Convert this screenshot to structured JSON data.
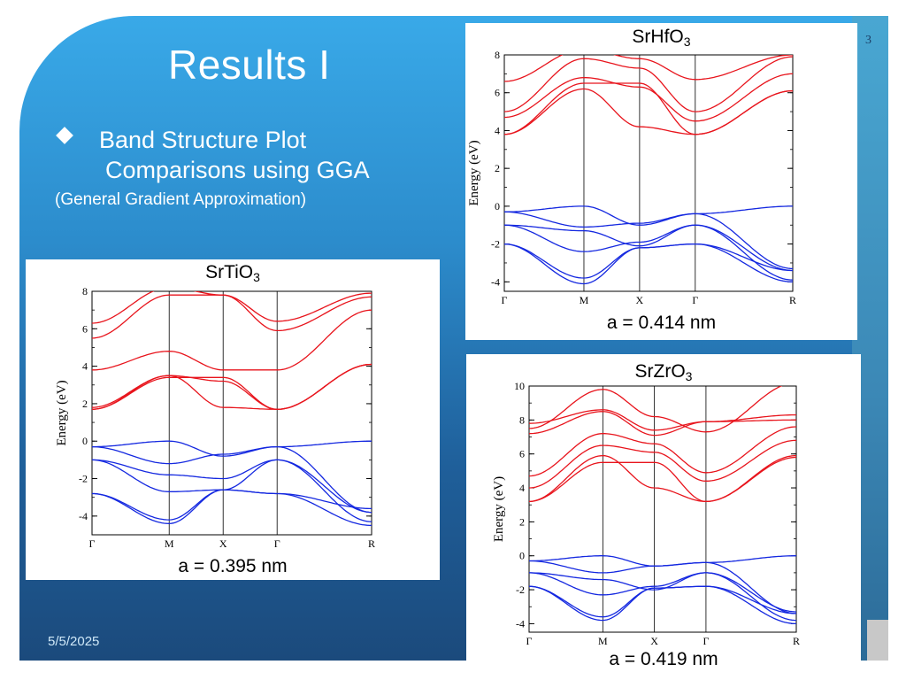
{
  "slide": {
    "title": "Results I",
    "bullet_line1": "Band Structure Plot",
    "bullet_line2": "Comparisons using GGA",
    "subnote": "(General Gradient Approximation)",
    "date": "5/5/2025",
    "slide_number": "3"
  },
  "figures": [
    {
      "id": "srtio3",
      "compound_base": "SrTiO",
      "compound_sub": "3",
      "lattice": "a = 0.395 nm",
      "ylabel": "Energy (eV)",
      "ylim": [
        -5,
        8
      ],
      "yticks": [
        "8",
        "6",
        "4",
        "2",
        "0",
        "-2",
        "-4"
      ],
      "kpoints": [
        "Γ",
        "M",
        "X",
        "Γ",
        "R"
      ],
      "conduction_color": "#e8141c",
      "valence_color": "#1428e0"
    },
    {
      "id": "srhfo3",
      "compound_base": "SrHfO",
      "compound_sub": "3",
      "lattice": "a = 0.414 nm",
      "ylabel": "Energy (eV)",
      "ylim": [
        -4.5,
        8
      ],
      "yticks": [
        "8",
        "6",
        "4",
        "2",
        "0",
        "-2",
        "-4"
      ],
      "kpoints": [
        "Γ",
        "M",
        "X",
        "Γ",
        "R"
      ],
      "conduction_color": "#e8141c",
      "valence_color": "#1428e0"
    },
    {
      "id": "srzro3",
      "compound_base": "SrZrO",
      "compound_sub": "3",
      "lattice": "a = 0.419 nm",
      "ylabel": "Energy (eV)",
      "ylim": [
        -4.5,
        10
      ],
      "yticks": [
        "10",
        "8",
        "6",
        "4",
        "2",
        "0",
        "-2",
        "-4"
      ],
      "kpoints": [
        "Γ",
        "M",
        "X",
        "Γ",
        "R"
      ],
      "conduction_color": "#e8141c",
      "valence_color": "#1428e0"
    }
  ]
}
